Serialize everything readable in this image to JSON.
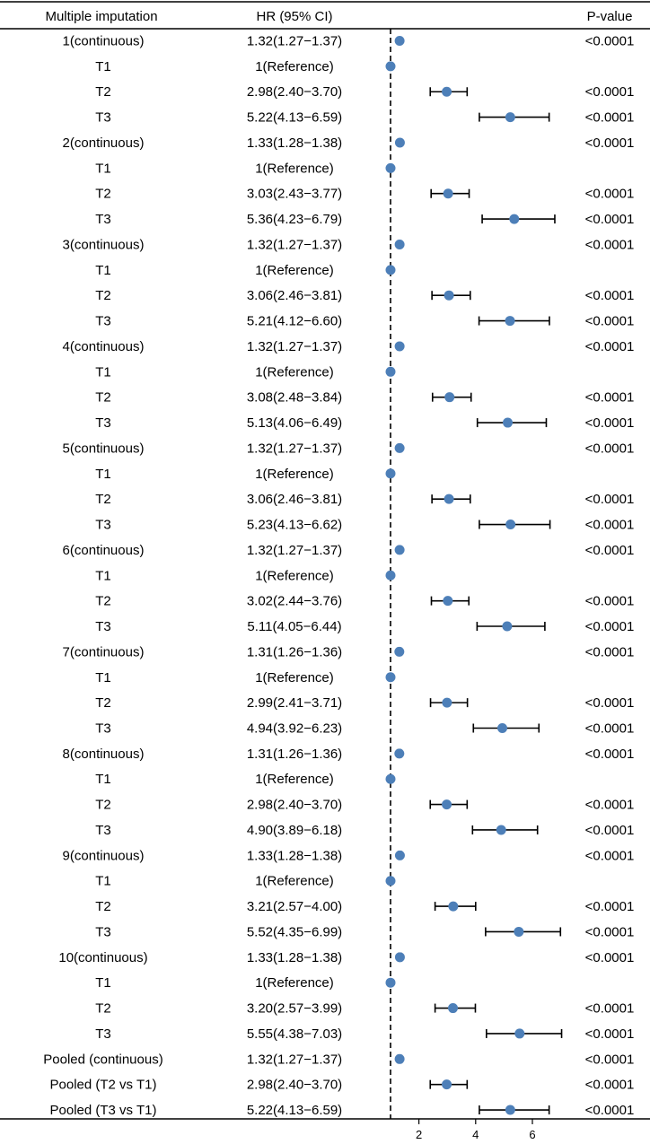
{
  "chart_data": {
    "type": "forest",
    "headers": {
      "label": "Multiple imputation",
      "hr": "HR (95% CI)",
      "p": "P-value"
    },
    "reference_line": 1,
    "x_ticks": [
      2,
      4,
      6
    ],
    "rows": [
      {
        "label": "1(continuous)",
        "hr_text": "1.32(1.27−1.37)",
        "hr": 1.32,
        "lo": 1.27,
        "hi": 1.37,
        "p": "<0.0001"
      },
      {
        "label": "T1",
        "hr_text": "1(Reference)",
        "hr": 1,
        "lo": 1,
        "hi": 1,
        "p": ""
      },
      {
        "label": "T2",
        "hr_text": "2.98(2.40−3.70)",
        "hr": 2.98,
        "lo": 2.4,
        "hi": 3.7,
        "p": "<0.0001"
      },
      {
        "label": "T3",
        "hr_text": "5.22(4.13−6.59)",
        "hr": 5.22,
        "lo": 4.13,
        "hi": 6.59,
        "p": "<0.0001"
      },
      {
        "label": "2(continuous)",
        "hr_text": "1.33(1.28−1.38)",
        "hr": 1.33,
        "lo": 1.28,
        "hi": 1.38,
        "p": "<0.0001"
      },
      {
        "label": "T1",
        "hr_text": "1(Reference)",
        "hr": 1,
        "lo": 1,
        "hi": 1,
        "p": ""
      },
      {
        "label": "T2",
        "hr_text": "3.03(2.43−3.77)",
        "hr": 3.03,
        "lo": 2.43,
        "hi": 3.77,
        "p": "<0.0001"
      },
      {
        "label": "T3",
        "hr_text": "5.36(4.23−6.79)",
        "hr": 5.36,
        "lo": 4.23,
        "hi": 6.79,
        "p": "<0.0001"
      },
      {
        "label": "3(continuous)",
        "hr_text": "1.32(1.27−1.37)",
        "hr": 1.32,
        "lo": 1.27,
        "hi": 1.37,
        "p": "<0.0001"
      },
      {
        "label": "T1",
        "hr_text": "1(Reference)",
        "hr": 1,
        "lo": 1,
        "hi": 1,
        "p": ""
      },
      {
        "label": "T2",
        "hr_text": "3.06(2.46−3.81)",
        "hr": 3.06,
        "lo": 2.46,
        "hi": 3.81,
        "p": "<0.0001"
      },
      {
        "label": "T3",
        "hr_text": "5.21(4.12−6.60)",
        "hr": 5.21,
        "lo": 4.12,
        "hi": 6.6,
        "p": "<0.0001"
      },
      {
        "label": "4(continuous)",
        "hr_text": "1.32(1.27−1.37)",
        "hr": 1.32,
        "lo": 1.27,
        "hi": 1.37,
        "p": "<0.0001"
      },
      {
        "label": "T1",
        "hr_text": "1(Reference)",
        "hr": 1,
        "lo": 1,
        "hi": 1,
        "p": ""
      },
      {
        "label": "T2",
        "hr_text": "3.08(2.48−3.84)",
        "hr": 3.08,
        "lo": 2.48,
        "hi": 3.84,
        "p": "<0.0001"
      },
      {
        "label": "T3",
        "hr_text": "5.13(4.06−6.49)",
        "hr": 5.13,
        "lo": 4.06,
        "hi": 6.49,
        "p": "<0.0001"
      },
      {
        "label": "5(continuous)",
        "hr_text": "1.32(1.27−1.37)",
        "hr": 1.32,
        "lo": 1.27,
        "hi": 1.37,
        "p": "<0.0001"
      },
      {
        "label": "T1",
        "hr_text": "1(Reference)",
        "hr": 1,
        "lo": 1,
        "hi": 1,
        "p": ""
      },
      {
        "label": "T2",
        "hr_text": "3.06(2.46−3.81)",
        "hr": 3.06,
        "lo": 2.46,
        "hi": 3.81,
        "p": "<0.0001"
      },
      {
        "label": "T3",
        "hr_text": "5.23(4.13−6.62)",
        "hr": 5.23,
        "lo": 4.13,
        "hi": 6.62,
        "p": "<0.0001"
      },
      {
        "label": "6(continuous)",
        "hr_text": "1.32(1.27−1.37)",
        "hr": 1.32,
        "lo": 1.27,
        "hi": 1.37,
        "p": "<0.0001"
      },
      {
        "label": "T1",
        "hr_text": "1(Reference)",
        "hr": 1,
        "lo": 1,
        "hi": 1,
        "p": ""
      },
      {
        "label": "T2",
        "hr_text": "3.02(2.44−3.76)",
        "hr": 3.02,
        "lo": 2.44,
        "hi": 3.76,
        "p": "<0.0001"
      },
      {
        "label": "T3",
        "hr_text": "5.11(4.05−6.44)",
        "hr": 5.11,
        "lo": 4.05,
        "hi": 6.44,
        "p": "<0.0001"
      },
      {
        "label": "7(continuous)",
        "hr_text": "1.31(1.26−1.36)",
        "hr": 1.31,
        "lo": 1.26,
        "hi": 1.36,
        "p": "<0.0001"
      },
      {
        "label": "T1",
        "hr_text": "1(Reference)",
        "hr": 1,
        "lo": 1,
        "hi": 1,
        "p": ""
      },
      {
        "label": "T2",
        "hr_text": "2.99(2.41−3.71)",
        "hr": 2.99,
        "lo": 2.41,
        "hi": 3.71,
        "p": "<0.0001"
      },
      {
        "label": "T3",
        "hr_text": "4.94(3.92−6.23)",
        "hr": 4.94,
        "lo": 3.92,
        "hi": 6.23,
        "p": "<0.0001"
      },
      {
        "label": "8(continuous)",
        "hr_text": "1.31(1.26−1.36)",
        "hr": 1.31,
        "lo": 1.26,
        "hi": 1.36,
        "p": "<0.0001"
      },
      {
        "label": "T1",
        "hr_text": "1(Reference)",
        "hr": 1,
        "lo": 1,
        "hi": 1,
        "p": ""
      },
      {
        "label": "T2",
        "hr_text": "2.98(2.40−3.70)",
        "hr": 2.98,
        "lo": 2.4,
        "hi": 3.7,
        "p": "<0.0001"
      },
      {
        "label": "T3",
        "hr_text": "4.90(3.89−6.18)",
        "hr": 4.9,
        "lo": 3.89,
        "hi": 6.18,
        "p": "<0.0001"
      },
      {
        "label": "9(continuous)",
        "hr_text": "1.33(1.28−1.38)",
        "hr": 1.33,
        "lo": 1.28,
        "hi": 1.38,
        "p": "<0.0001"
      },
      {
        "label": "T1",
        "hr_text": "1(Reference)",
        "hr": 1,
        "lo": 1,
        "hi": 1,
        "p": ""
      },
      {
        "label": "T2",
        "hr_text": "3.21(2.57−4.00)",
        "hr": 3.21,
        "lo": 2.57,
        "hi": 4.0,
        "p": "<0.0001"
      },
      {
        "label": "T3",
        "hr_text": "5.52(4.35−6.99)",
        "hr": 5.52,
        "lo": 4.35,
        "hi": 6.99,
        "p": "<0.0001"
      },
      {
        "label": "10(continuous)",
        "hr_text": "1.33(1.28−1.38)",
        "hr": 1.33,
        "lo": 1.28,
        "hi": 1.38,
        "p": "<0.0001"
      },
      {
        "label": "T1",
        "hr_text": "1(Reference)",
        "hr": 1,
        "lo": 1,
        "hi": 1,
        "p": ""
      },
      {
        "label": "T2",
        "hr_text": "3.20(2.57−3.99)",
        "hr": 3.2,
        "lo": 2.57,
        "hi": 3.99,
        "p": "<0.0001"
      },
      {
        "label": "T3",
        "hr_text": "5.55(4.38−7.03)",
        "hr": 5.55,
        "lo": 4.38,
        "hi": 7.03,
        "p": "<0.0001"
      },
      {
        "label": "Pooled (continuous)",
        "hr_text": "1.32(1.27−1.37)",
        "hr": 1.32,
        "lo": 1.27,
        "hi": 1.37,
        "p": "<0.0001"
      },
      {
        "label": "Pooled (T2 vs T1)",
        "hr_text": "2.98(2.40−3.70)",
        "hr": 2.98,
        "lo": 2.4,
        "hi": 3.7,
        "p": "<0.0001"
      },
      {
        "label": "Pooled (T3 vs T1)",
        "hr_text": "5.22(4.13−6.59)",
        "hr": 5.22,
        "lo": 4.13,
        "hi": 6.59,
        "p": "<0.0001"
      }
    ],
    "colors": {
      "point": "#4d7fb8",
      "line": "#000000"
    }
  }
}
